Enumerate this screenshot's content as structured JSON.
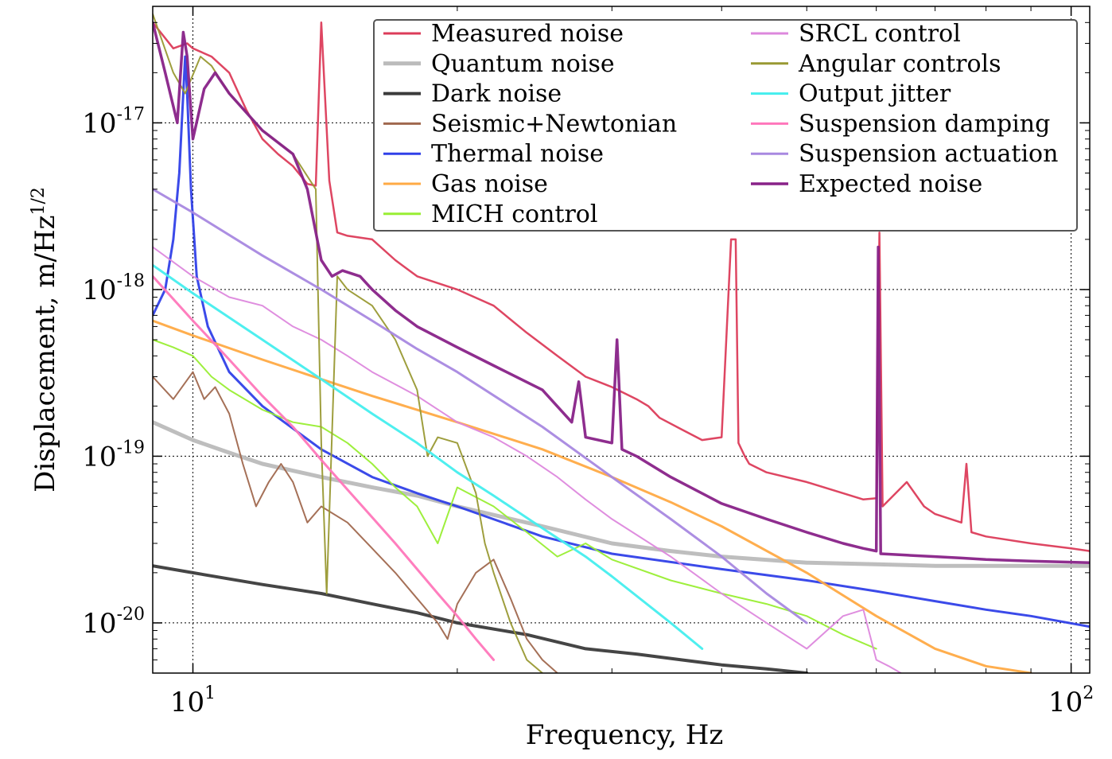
{
  "chart_data": {
    "type": "line",
    "title": "",
    "xlabel": "Frequency, Hz",
    "ylabel": "Displacement, m/Hz",
    "ylabel_exponent": "1/2",
    "x_scale": "log",
    "y_scale": "log",
    "xlim": [
      9.0,
      105.0
    ],
    "ylim": [
      5e-21,
      5e-17
    ],
    "grid": true,
    "legend_position": "top-right",
    "x_ticks": [
      {
        "value": 10,
        "base": "10",
        "exp": "1"
      },
      {
        "value": 100,
        "base": "10",
        "exp": "2"
      }
    ],
    "y_ticks": [
      {
        "value": 1e-20,
        "base": "10",
        "exp": "-20"
      },
      {
        "value": 1e-19,
        "base": "10",
        "exp": "-19"
      },
      {
        "value": 1e-18,
        "base": "10",
        "exp": "-18"
      },
      {
        "value": 1e-17,
        "base": "10",
        "exp": "-17"
      }
    ],
    "series": [
      {
        "name": "Measured noise",
        "color": "#dc3c5a",
        "width": 2.5,
        "x": [
          9.0,
          9.5,
          9.85,
          10.0,
          10.5,
          11.0,
          11.5,
          12.0,
          12.5,
          13.0,
          13.5,
          13.8,
          14.0,
          14.3,
          14.6,
          15.0,
          16.0,
          17.0,
          18.0,
          20.0,
          22.0,
          24.0,
          26.0,
          28.0,
          30.0,
          32.0,
          33.0,
          34.0,
          36.0,
          38.0,
          40.0,
          41.0,
          41.5,
          41.8,
          42.5,
          43.0,
          45.0,
          50.0,
          55.0,
          58.0,
          60.0,
          60.5,
          61.0,
          65.0,
          68.0,
          70.0,
          75.0,
          76.0,
          77.0,
          80.0,
          90.0,
          100.0,
          105.0
        ],
        "y": [
          4e-17,
          2.8e-17,
          3e-17,
          2.8e-17,
          2.5e-17,
          2e-17,
          1.2e-17,
          8e-18,
          6.5e-18,
          5.5e-18,
          4.3e-18,
          4.2e-18,
          4e-17,
          4.5e-18,
          2.2e-18,
          2.1e-18,
          2e-18,
          1.5e-18,
          1.2e-18,
          1e-18,
          8e-19,
          5.5e-19,
          4e-19,
          3e-19,
          2.6e-19,
          2.2e-19,
          2e-19,
          1.7e-19,
          1.45e-19,
          1.25e-19,
          1.3e-19,
          2e-18,
          2e-18,
          1.2e-19,
          1e-19,
          9e-20,
          8e-20,
          7e-20,
          6e-20,
          5.5e-20,
          5.6e-20,
          2.2e-18,
          5e-20,
          7e-20,
          5e-20,
          4.5e-20,
          4e-20,
          9e-20,
          3.5e-20,
          3.3e-20,
          3e-20,
          2.8e-20,
          2.7e-20
        ]
      },
      {
        "name": "Quantum noise",
        "color": "#bbbbbb",
        "width": 5,
        "x": [
          9.0,
          10.0,
          11.0,
          12.0,
          14.0,
          16.0,
          18.0,
          20.0,
          25.0,
          30.0,
          35.0,
          40.0,
          50.0,
          60.0,
          70.0,
          80.0,
          90.0,
          105.0
        ],
        "y": [
          1.6e-19,
          1.25e-19,
          1.05e-19,
          9e-20,
          7.5e-20,
          6.5e-20,
          5.8e-20,
          5e-20,
          3.8e-20,
          3e-20,
          2.7e-20,
          2.5e-20,
          2.3e-20,
          2.25e-20,
          2.2e-20,
          2.2e-20,
          2.2e-20,
          2.2e-20
        ]
      },
      {
        "name": "Dark noise",
        "color": "#3b3b3b",
        "width": 4,
        "x": [
          9.0,
          10.0,
          12.0,
          14.0,
          16.0,
          18.0,
          20.0,
          24.0,
          28.0,
          32.0,
          36.0,
          40.0,
          45.0,
          50.0
        ],
        "y": [
          2.2e-20,
          2e-20,
          1.7e-20,
          1.5e-20,
          1.3e-20,
          1.15e-20,
          1e-20,
          8.5e-21,
          7e-21,
          6.5e-21,
          6e-21,
          5.6e-21,
          5.3e-21,
          5e-21
        ]
      },
      {
        "name": "Seismic+Newtonian",
        "color": "#a0684e",
        "width": 2,
        "x": [
          9.0,
          9.5,
          10.0,
          10.3,
          10.6,
          11.0,
          11.4,
          11.8,
          12.2,
          12.6,
          13.0,
          13.5,
          14.0,
          15.0,
          16.0,
          17.0,
          18.0,
          19.0,
          19.5,
          20.0,
          21.0,
          22.0,
          23.0,
          24.0,
          25.0,
          26.0
        ],
        "y": [
          3e-19,
          2.2e-19,
          3.2e-19,
          2.2e-19,
          2.6e-19,
          1.8e-19,
          9e-20,
          5e-20,
          7e-20,
          9e-20,
          7e-20,
          4e-20,
          5e-20,
          4e-20,
          2.8e-20,
          2e-20,
          1.4e-20,
          1e-20,
          8e-21,
          1.3e-20,
          2e-20,
          2.4e-20,
          1.4e-20,
          8e-21,
          6e-21,
          5e-21
        ]
      },
      {
        "name": "Thermal noise",
        "color": "#3040e8",
        "width": 3,
        "x": [
          9.0,
          9.3,
          9.5,
          9.65,
          9.75,
          9.8,
          9.85,
          9.95,
          10.1,
          10.4,
          11.0,
          12.0,
          14.0,
          16.0,
          18.0,
          20.0,
          25.0,
          30.0,
          40.0,
          50.0,
          60.0,
          70.0,
          80.0,
          90.0,
          105.0
        ],
        "y": [
          7e-19,
          1e-18,
          2e-18,
          5e-18,
          1.5e-17,
          2.5e-17,
          1.5e-17,
          4e-18,
          1.2e-18,
          6e-19,
          3.2e-19,
          2e-19,
          1.1e-19,
          7.5e-20,
          6e-20,
          5e-20,
          3.3e-20,
          2.6e-20,
          2.1e-20,
          1.8e-20,
          1.55e-20,
          1.35e-20,
          1.2e-20,
          1.1e-20,
          9.5e-21
        ]
      },
      {
        "name": "Gas noise",
        "color": "#ffaa44",
        "width": 3,
        "x": [
          9.0,
          10.0,
          12.0,
          14.0,
          16.0,
          20.0,
          25.0,
          30.0,
          35.0,
          40.0,
          50.0,
          60.0,
          70.0,
          80.0,
          90.0
        ],
        "y": [
          6.5e-19,
          5.3e-19,
          3.8e-19,
          2.9e-19,
          2.3e-19,
          1.6e-19,
          1.1e-19,
          7.5e-20,
          5.3e-20,
          3.8e-20,
          2e-20,
          1.1e-20,
          7e-21,
          5.5e-21,
          5e-21
        ]
      },
      {
        "name": "MICH control",
        "color": "#99ee33",
        "width": 2,
        "x": [
          9.0,
          9.5,
          10.0,
          10.5,
          11.0,
          12.0,
          13.0,
          14.0,
          15.0,
          16.0,
          17.0,
          18.0,
          19.0,
          20.0,
          22.0,
          24.0,
          26.0,
          28.0,
          30.0,
          35.0,
          40.0,
          45.0,
          50.0,
          55.0,
          60.0
        ],
        "y": [
          5e-19,
          4.5e-19,
          4e-19,
          3e-19,
          2.5e-19,
          1.9e-19,
          1.6e-19,
          1.5e-19,
          1.2e-19,
          9e-20,
          6.5e-20,
          5e-20,
          3e-20,
          6.5e-20,
          5e-20,
          3.5e-20,
          2.5e-20,
          3e-20,
          2.4e-20,
          1.8e-20,
          1.5e-20,
          1.3e-20,
          1.1e-20,
          8.5e-21,
          7e-21
        ]
      },
      {
        "name": "SRCL control",
        "color": "#dd88dd",
        "width": 2,
        "x": [
          9.0,
          10.0,
          11.0,
          12.0,
          13.0,
          14.0,
          15.0,
          16.0,
          18.0,
          20.0,
          22.0,
          24.0,
          26.0,
          28.0,
          30.0,
          35.0,
          40.0,
          45.0,
          50.0,
          55.0,
          58.0,
          60.0,
          62.0,
          64.0
        ],
        "y": [
          1.8e-18,
          1.2e-18,
          9e-19,
          8e-19,
          6e-19,
          5e-19,
          4e-19,
          3.2e-19,
          2.3e-19,
          1.6e-19,
          1.3e-19,
          1e-19,
          7.5e-20,
          5.5e-20,
          4.2e-20,
          2.5e-20,
          1.5e-20,
          1e-20,
          7e-21,
          1.1e-20,
          1.2e-20,
          6e-21,
          5.5e-21,
          5e-21
        ]
      },
      {
        "name": "Angular controls",
        "color": "#999933",
        "width": 2,
        "x": [
          9.0,
          9.5,
          9.8,
          10.2,
          10.5,
          11.0,
          12.0,
          13.0,
          13.8,
          14.0,
          14.2,
          14.6,
          15.0,
          16.0,
          17.0,
          18.0,
          18.5,
          19.0,
          20.0,
          21.0,
          21.5,
          22.0,
          23.0,
          24.0,
          25.0
        ],
        "y": [
          4.5e-17,
          2e-17,
          1.5e-17,
          2.5e-17,
          2.2e-17,
          1.5e-17,
          9e-18,
          6.5e-18,
          4e-18,
          1.2e-19,
          1.5e-20,
          1.2e-18,
          1e-18,
          8e-19,
          5e-19,
          2.5e-19,
          1e-19,
          1.3e-19,
          1.2e-19,
          6e-20,
          3e-20,
          2e-20,
          1e-20,
          6e-21,
          5e-21
        ]
      },
      {
        "name": "Output jitter",
        "color": "#44eeee",
        "width": 3,
        "x": [
          9.0,
          10.0,
          12.0,
          14.0,
          16.0,
          18.0,
          20.0,
          22.0,
          25.0,
          28.0,
          30.0,
          35.0,
          38.0
        ],
        "y": [
          1.4e-18,
          9.5e-19,
          5e-19,
          2.9e-19,
          1.8e-19,
          1.2e-19,
          8e-20,
          5.8e-20,
          3.7e-20,
          2.5e-20,
          1.9e-20,
          1e-20,
          7e-21
        ]
      },
      {
        "name": "Suspension damping",
        "color": "#ff77bb",
        "width": 3,
        "x": [
          9.0,
          10.0,
          11.0,
          12.0,
          13.0,
          14.0,
          15.0,
          16.0,
          17.0,
          18.0,
          19.0,
          20.0,
          21.0,
          22.0
        ],
        "y": [
          1.2e-18,
          6.5e-19,
          3.8e-19,
          2.3e-19,
          1.5e-19,
          9.5e-20,
          6.3e-20,
          4.3e-20,
          3e-20,
          2.1e-20,
          1.5e-20,
          1.1e-20,
          8e-21,
          6e-21
        ]
      },
      {
        "name": "Suspension actuation",
        "color": "#a888e0",
        "width": 3,
        "x": [
          9.0,
          10.0,
          12.0,
          14.0,
          16.0,
          18.0,
          20.0,
          25.0,
          30.0,
          35.0,
          40.0,
          45.0,
          50.0
        ],
        "y": [
          4e-18,
          2.9e-18,
          1.6e-18,
          1e-18,
          6.5e-19,
          4.4e-19,
          3.2e-19,
          1.5e-19,
          7.5e-20,
          4.2e-20,
          2.5e-20,
          1.5e-20,
          1e-20
        ]
      },
      {
        "name": "Expected noise",
        "color": "#882288",
        "width": 3.5,
        "x": [
          9.0,
          9.3,
          9.6,
          9.75,
          9.85,
          10.0,
          10.3,
          10.6,
          11.0,
          12.0,
          13.0,
          13.5,
          14.0,
          14.4,
          14.8,
          15.5,
          16.0,
          17.0,
          18.0,
          20.0,
          22.0,
          25.0,
          27.0,
          27.5,
          28.0,
          30.0,
          30.4,
          30.8,
          32.0,
          35.0,
          40.0,
          45.0,
          50.0,
          55.0,
          58.0,
          60.0,
          60.3,
          60.7,
          65.0,
          70.0,
          75.0,
          80.0,
          90.0,
          105.0
        ],
        "y": [
          4e-17,
          2e-17,
          1e-17,
          3.5e-17,
          2.5e-17,
          8e-18,
          1.6e-17,
          2e-17,
          1.5e-17,
          9e-18,
          6.5e-18,
          4e-18,
          1.5e-18,
          1.2e-18,
          1.3e-18,
          1.2e-18,
          1e-18,
          7.5e-19,
          6e-19,
          4.5e-19,
          3.5e-19,
          2.5e-19,
          1.6e-19,
          2.8e-19,
          1.3e-19,
          1.2e-19,
          5e-19,
          1.1e-19,
          1e-19,
          7.5e-20,
          5.2e-20,
          4.2e-20,
          3.5e-20,
          3e-20,
          2.8e-20,
          2.7e-20,
          1.8e-18,
          2.6e-20,
          2.55e-20,
          2.5e-20,
          2.45e-20,
          2.4e-20,
          2.35e-20,
          2.3e-20
        ]
      }
    ]
  }
}
